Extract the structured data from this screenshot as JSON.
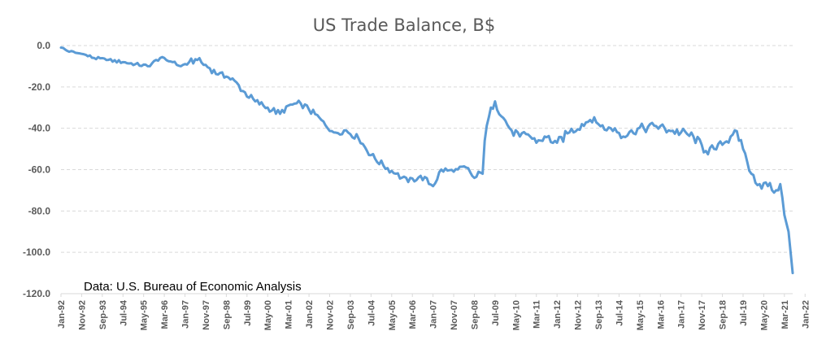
{
  "chart_data": {
    "type": "line",
    "title": "US Trade Balance, B$",
    "source_note": "Data: U.S. Bureau of Economic Analysis",
    "xlabel": "",
    "ylabel": "",
    "ylim": [
      -120,
      0
    ],
    "yticks": [
      0,
      -20,
      -40,
      -60,
      -80,
      -100,
      -120
    ],
    "ytick_labels": [
      "0.0",
      "-20.0",
      "-40.0",
      "-60.0",
      "-80.0",
      "-100.0",
      "-120.0"
    ],
    "gridlines": true,
    "x_start": "Jan-92",
    "x_tick_labels": [
      "Jan-92",
      "Nov-92",
      "Sep-93",
      "Jul-94",
      "May-95",
      "Mar-96",
      "Jan-97",
      "Nov-97",
      "Sep-98",
      "Jul-99",
      "May-00",
      "Mar-01",
      "Jan-02",
      "Nov-02",
      "Sep-03",
      "Jul-04",
      "May-05",
      "Mar-06",
      "Jan-07",
      "Nov-07",
      "Sep-08",
      "Jul-09",
      "May-10",
      "Mar-11",
      "Jan-12",
      "Nov-12",
      "Sep-13",
      "Jul-14",
      "May-15",
      "Mar-16",
      "Jan-17",
      "Nov-17",
      "Sep-18",
      "Jul-19",
      "May-20",
      "Mar-21",
      "Jan-22"
    ],
    "series": [
      {
        "name": "US Trade Balance",
        "color": "#5b9bd5",
        "anchors": [
          {
            "month": 0,
            "value": -1
          },
          {
            "month": 4,
            "value": -3
          },
          {
            "month": 10,
            "value": -4
          },
          {
            "month": 16,
            "value": -6
          },
          {
            "month": 22,
            "value": -7
          },
          {
            "month": 30,
            "value": -8
          },
          {
            "month": 36,
            "value": -9
          },
          {
            "month": 42,
            "value": -10
          },
          {
            "month": 48,
            "value": -6
          },
          {
            "month": 54,
            "value": -8
          },
          {
            "month": 58,
            "value": -10
          },
          {
            "month": 62,
            "value": -8
          },
          {
            "month": 66,
            "value": -7
          },
          {
            "month": 72,
            "value": -11
          },
          {
            "month": 76,
            "value": -14
          },
          {
            "month": 80,
            "value": -15
          },
          {
            "month": 84,
            "value": -17
          },
          {
            "month": 88,
            "value": -22
          },
          {
            "month": 94,
            "value": -27
          },
          {
            "month": 100,
            "value": -30
          },
          {
            "month": 106,
            "value": -33
          },
          {
            "month": 110,
            "value": -29
          },
          {
            "month": 116,
            "value": -28
          },
          {
            "month": 120,
            "value": -31
          },
          {
            "month": 126,
            "value": -36
          },
          {
            "month": 132,
            "value": -42
          },
          {
            "month": 138,
            "value": -41
          },
          {
            "month": 144,
            "value": -45
          },
          {
            "month": 150,
            "value": -53
          },
          {
            "month": 156,
            "value": -58
          },
          {
            "month": 162,
            "value": -62
          },
          {
            "month": 168,
            "value": -66
          },
          {
            "month": 174,
            "value": -63
          },
          {
            "month": 180,
            "value": -68
          },
          {
            "month": 184,
            "value": -60
          },
          {
            "month": 190,
            "value": -61
          },
          {
            "month": 196,
            "value": -59
          },
          {
            "month": 200,
            "value": -64
          },
          {
            "month": 204,
            "value": -62
          },
          {
            "month": 205,
            "value": -46
          },
          {
            "month": 208,
            "value": -30
          },
          {
            "month": 210,
            "value": -27
          },
          {
            "month": 214,
            "value": -35
          },
          {
            "month": 218,
            "value": -41
          },
          {
            "month": 222,
            "value": -44
          },
          {
            "month": 226,
            "value": -43
          },
          {
            "month": 230,
            "value": -47
          },
          {
            "month": 234,
            "value": -44
          },
          {
            "month": 240,
            "value": -47
          },
          {
            "month": 246,
            "value": -42
          },
          {
            "month": 252,
            "value": -38
          },
          {
            "month": 256,
            "value": -36
          },
          {
            "month": 260,
            "value": -38
          },
          {
            "month": 264,
            "value": -41
          },
          {
            "month": 268,
            "value": -40
          },
          {
            "month": 272,
            "value": -44
          },
          {
            "month": 276,
            "value": -41
          },
          {
            "month": 282,
            "value": -40
          },
          {
            "month": 288,
            "value": -39
          },
          {
            "month": 294,
            "value": -41
          },
          {
            "month": 300,
            "value": -42
          },
          {
            "month": 306,
            "value": -44
          },
          {
            "month": 312,
            "value": -51
          },
          {
            "month": 316,
            "value": -50
          },
          {
            "month": 320,
            "value": -48
          },
          {
            "month": 324,
            "value": -44
          },
          {
            "month": 326,
            "value": -41
          },
          {
            "month": 328,
            "value": -46
          },
          {
            "month": 330,
            "value": -50
          },
          {
            "month": 334,
            "value": -62
          },
          {
            "month": 338,
            "value": -67
          },
          {
            "month": 342,
            "value": -68
          },
          {
            "month": 346,
            "value": -70
          },
          {
            "month": 348,
            "value": -67
          },
          {
            "month": 350,
            "value": -82
          },
          {
            "month": 352,
            "value": -90
          },
          {
            "month": 354,
            "value": -110
          }
        ]
      }
    ]
  }
}
